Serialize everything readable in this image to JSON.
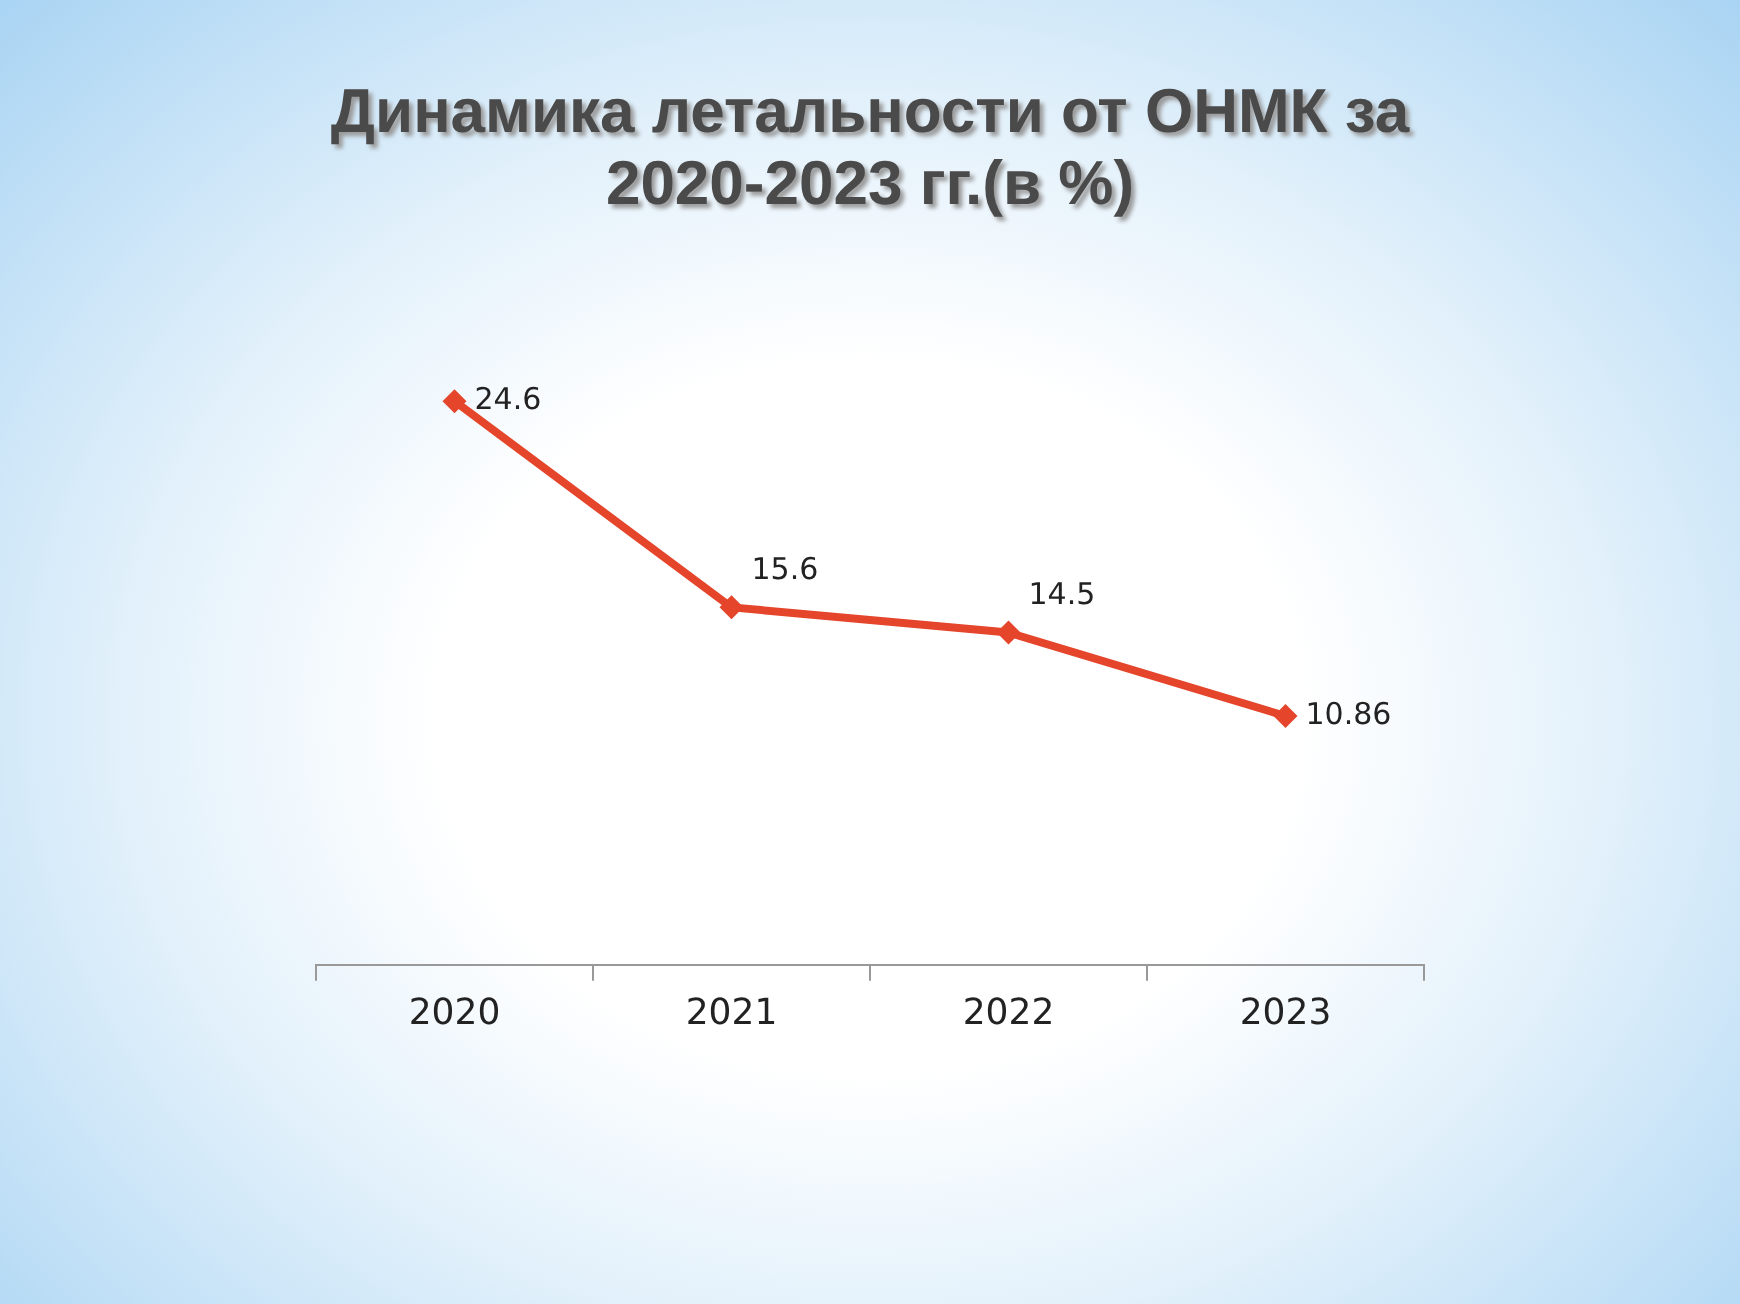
{
  "chart_data": {
    "type": "line",
    "title": "Динамика летальности от ОНМК за 2020-2023 гг.(в %)",
    "categories": [
      "2020",
      "2021",
      "2022",
      "2023"
    ],
    "series": [
      {
        "color": "#e4452b",
        "values": [
          24.6,
          15.6,
          14.5,
          10.86
        ]
      }
    ],
    "tick_labels": "x",
    "data_labels": true,
    "grid": false,
    "legend": false,
    "marker": "diamond",
    "line_style": "solid"
  }
}
